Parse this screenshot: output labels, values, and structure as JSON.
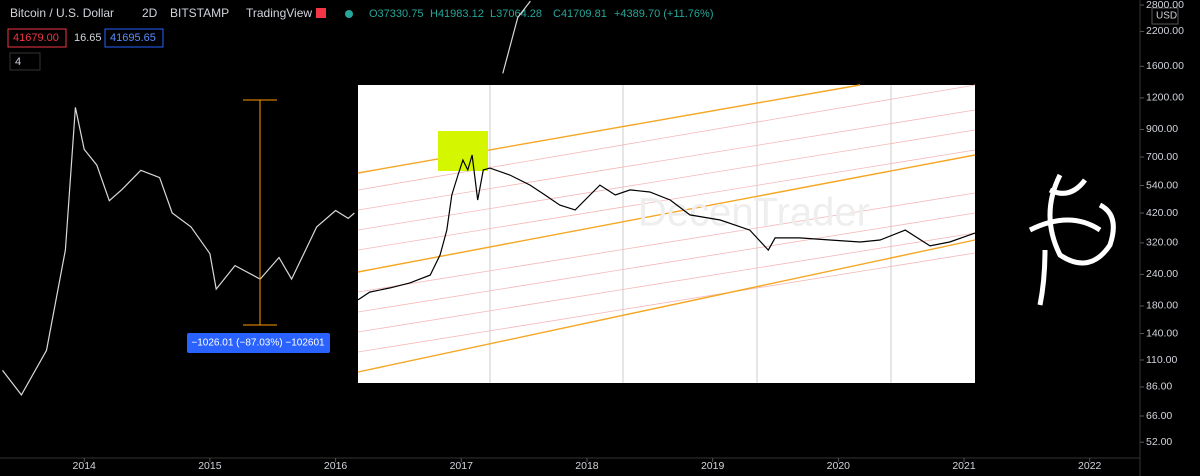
{
  "header": {
    "symbol": "Bitcoin / U.S. Dollar",
    "interval": "2D",
    "exchange": "BITSTAMP",
    "source": "TradingView",
    "open": "O37330.75",
    "high": "H41983.12",
    "low": "L37064.28",
    "close": "C41709.81",
    "change": "+4389.70 (+11.76%)",
    "bid": "41679.00",
    "spread": "16.65",
    "ask": "41695.65",
    "indicators": "4",
    "currency": "USD",
    "measure": "−1026.01 (−87.03%) −102601",
    "watermark": "DecenTrader"
  },
  "chart_data": [
    {
      "type": "line",
      "log_scale": true,
      "color": "#d9d9d9",
      "x": [
        2013.35,
        2013.5,
        2013.7,
        2013.85,
        2013.93,
        2014.0,
        2014.1,
        2014.2,
        2014.3,
        2014.45,
        2014.6,
        2014.7,
        2014.85,
        2015.0,
        2015.05,
        2015.2,
        2015.4,
        2015.55,
        2015.65,
        2015.85,
        2016.0,
        2016.1,
        2016.15,
        2017.0,
        2017.33,
        2017.45,
        2017.55
      ],
      "values": [
        100,
        80,
        120,
        300,
        1100,
        750,
        650,
        470,
        520,
        620,
        580,
        420,
        370,
        290,
        210,
        260,
        230,
        280,
        230,
        370,
        430,
        400,
        420,
        null,
        1500,
        2500,
        2900
      ],
      "xlim": [
        2013.33,
        2022.4
      ],
      "xticks": [
        2014,
        2015,
        2016,
        2017,
        2018,
        2019,
        2020,
        2021,
        2022
      ],
      "ylim": [
        45,
        2930
      ],
      "yticks": [
        {
          "value": 2800,
          "label": "2800.00"
        },
        {
          "value": 2200,
          "label": "2200.00"
        },
        {
          "value": 1600,
          "label": "1600.00"
        },
        {
          "value": 1200,
          "label": "1200.00"
        },
        {
          "value": 900,
          "label": "900.00"
        },
        {
          "value": 700,
          "label": "700.00"
        },
        {
          "value": 540,
          "label": "540.00"
        },
        {
          "value": 420,
          "label": "420.00"
        },
        {
          "value": 320,
          "label": "320.00"
        },
        {
          "value": 240,
          "label": "240.00"
        },
        {
          "value": 180,
          "label": "180.00"
        },
        {
          "value": 140,
          "label": "140.00"
        },
        {
          "value": 110,
          "label": "110.00"
        },
        {
          "value": 86,
          "label": "86.00"
        },
        {
          "value": 66,
          "label": "66.00"
        },
        {
          "value": 52,
          "label": "52.00"
        }
      ]
    },
    {
      "type": "line",
      "color": "#000000",
      "x": [
        0,
        1.9,
        5.2,
        8.4,
        11.7,
        13.3,
        14.4,
        15.2,
        16.2,
        17.0,
        17.8,
        18.5,
        19.4,
        20.3,
        21.4,
        24.6,
        27.9,
        30.3,
        32.7,
        35.2,
        37.6,
        39.2,
        41.7,
        44.1,
        47.3,
        50.6,
        53.8,
        58.7,
        63.5,
        66.5,
        67.6,
        71.6,
        76.5,
        81.4,
        84.6,
        88.7,
        92.7,
        95.9,
        100
      ],
      "values": [
        27.9,
        30.5,
        31.9,
        33.6,
        36.2,
        43.0,
        51.3,
        63.1,
        69.8,
        74.8,
        71.5,
        76.5,
        61.4,
        71.5,
        72.1,
        69.8,
        66.4,
        63.1,
        59.7,
        58.1,
        63.1,
        66.4,
        63.1,
        64.8,
        64.1,
        61.4,
        56.4,
        54.7,
        51.3,
        44.6,
        48.7,
        48.7,
        48.0,
        47.3,
        48.0,
        51.3,
        46.0,
        47.3,
        50.3
      ],
      "xlim": [
        0,
        100
      ],
      "ylim": [
        0,
        100
      ]
    }
  ]
}
